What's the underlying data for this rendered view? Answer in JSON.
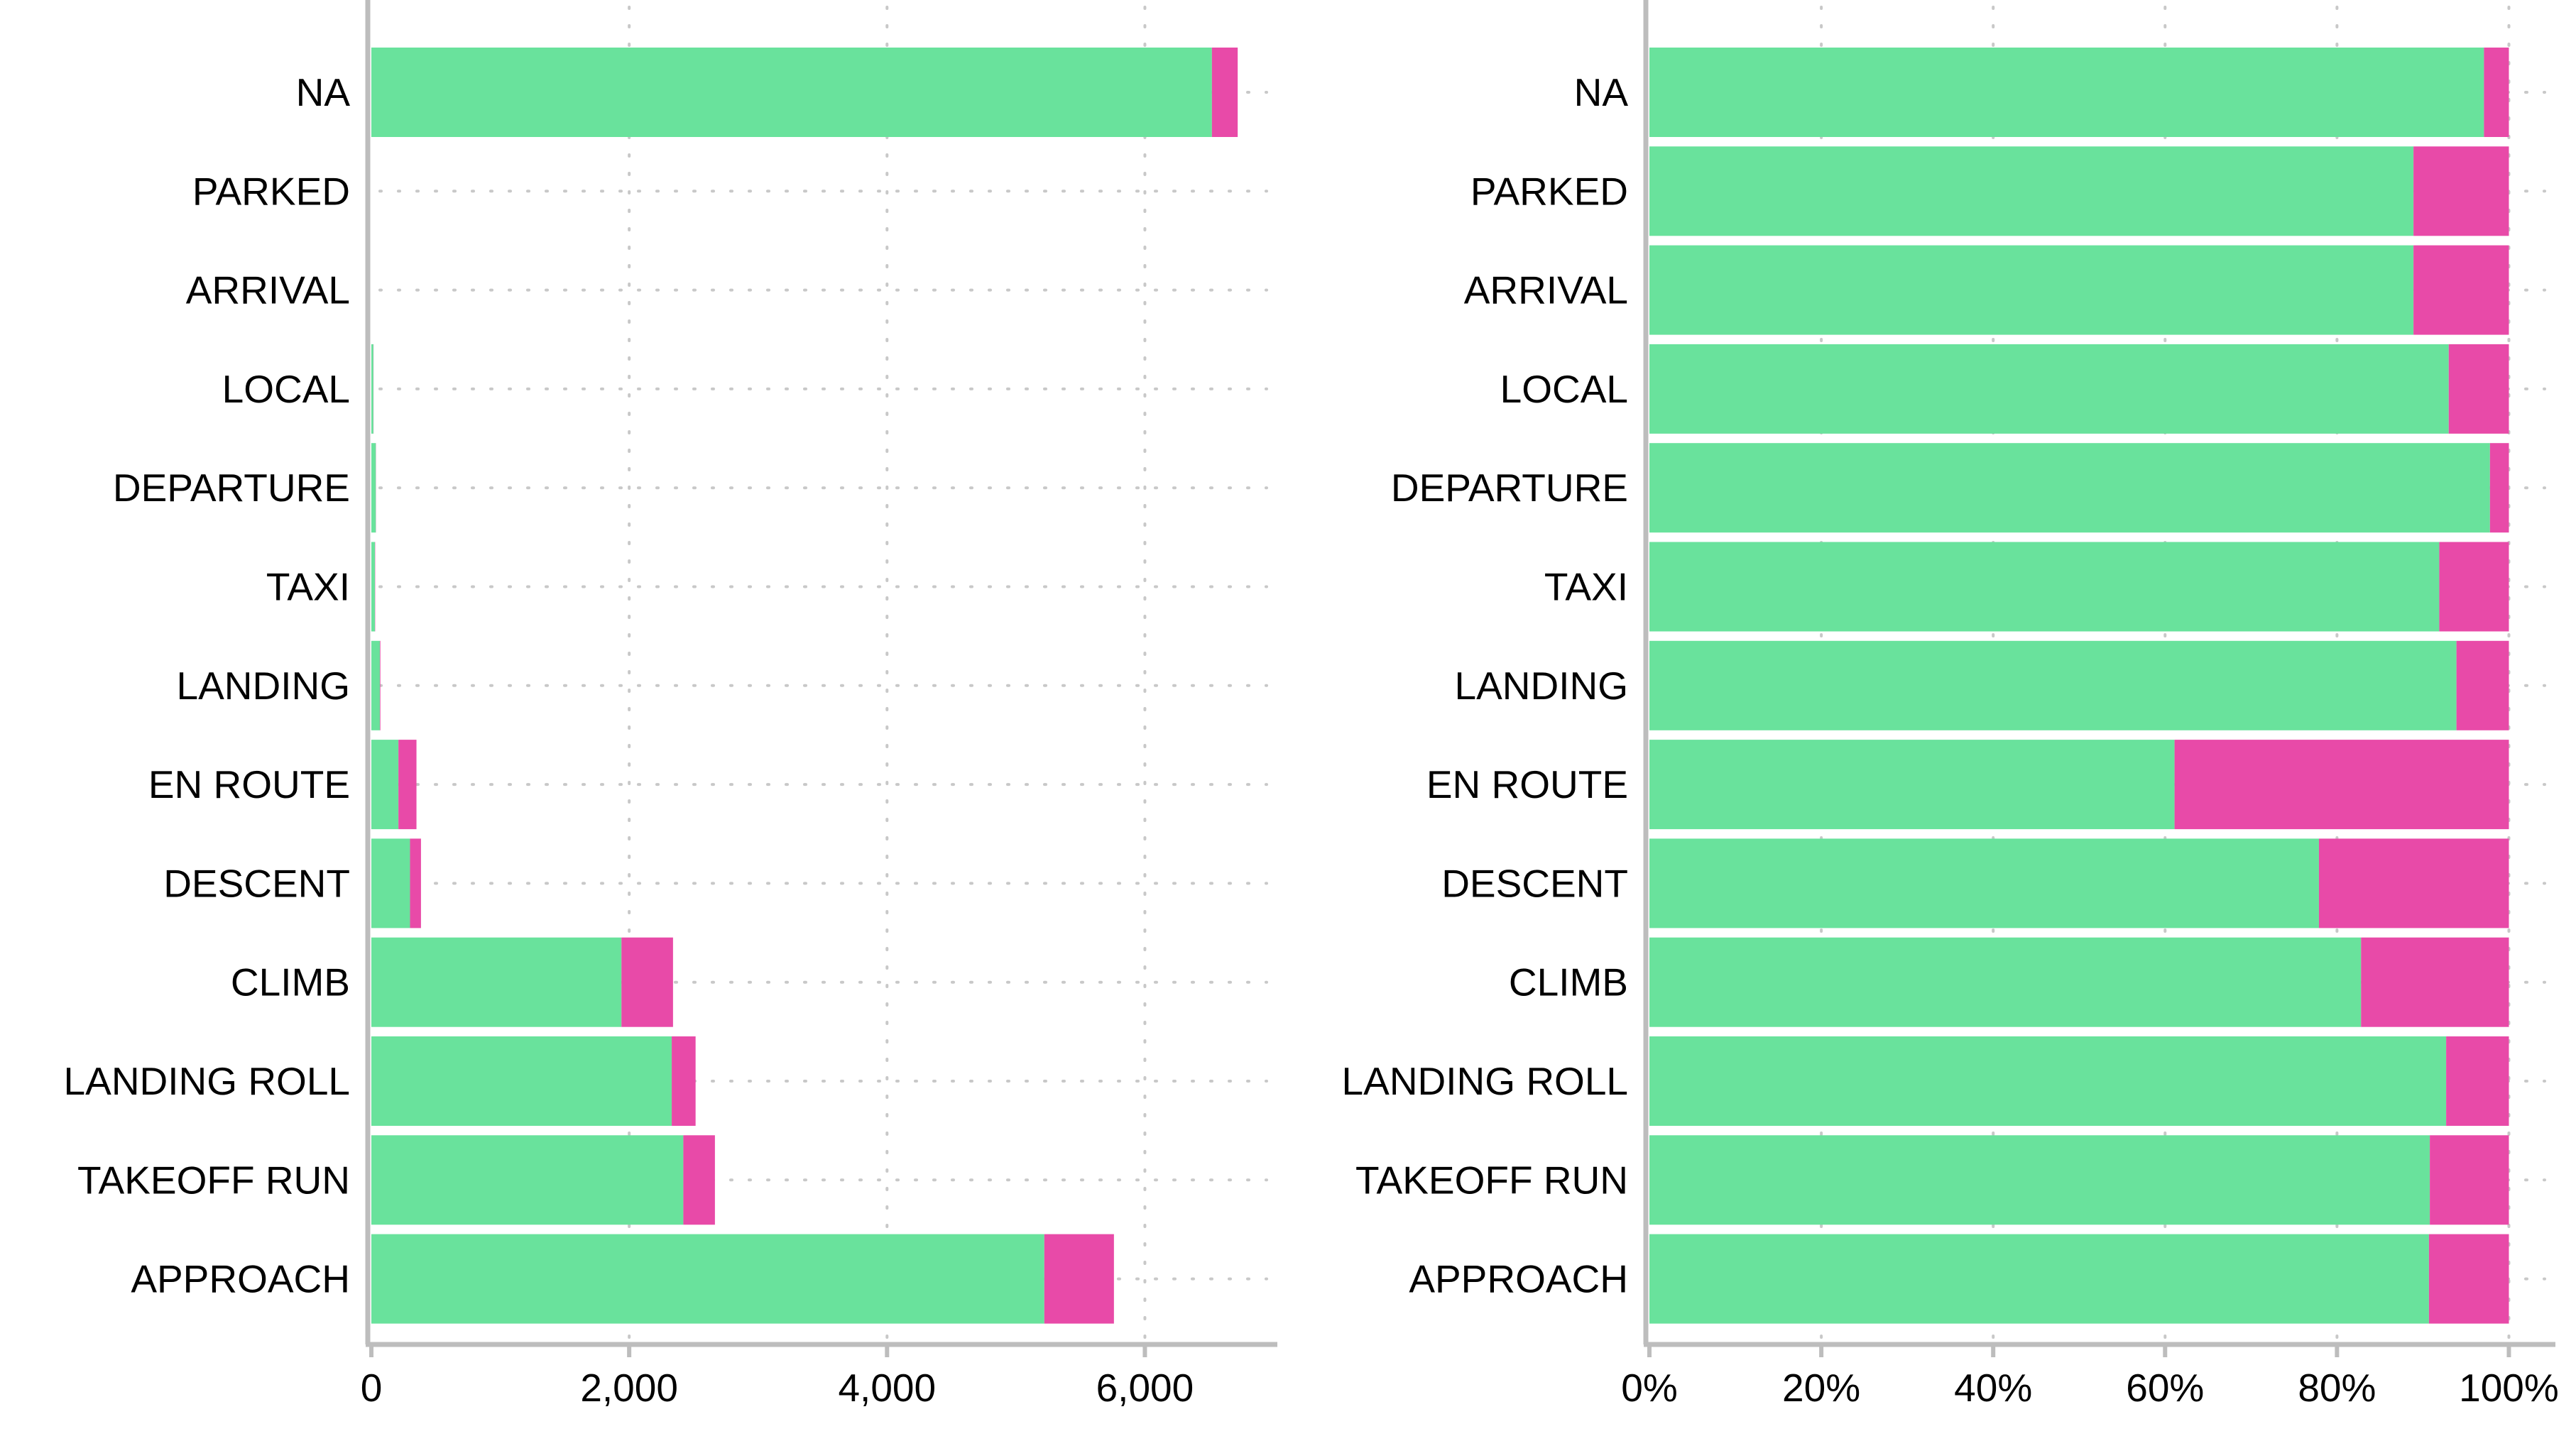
{
  "colors": {
    "green": "#69e29c",
    "pink": "#e84aa8",
    "grid": "#c8c8c8",
    "axis": "#bdbdbd"
  },
  "chart_data": [
    {
      "type": "bar",
      "orientation": "horizontal",
      "stacked": true,
      "categories": [
        "NA",
        "PARKED",
        "ARRIVAL",
        "LOCAL",
        "DEPARTURE",
        "TAXI",
        "LANDING",
        "EN ROUTE",
        "DESCENT",
        "CLIMB",
        "LANDING ROLL",
        "TAKEOFF RUN",
        "APPROACH"
      ],
      "series": [
        {
          "color": "#69e29c",
          "values": [
            6520,
            0,
            0,
            16,
            35,
            28,
            66,
            210,
            300,
            1940,
            2330,
            2420,
            5220
          ]
        },
        {
          "color": "#e84aa8",
          "values": [
            200,
            0,
            0,
            1,
            1,
            2,
            4,
            140,
            85,
            400,
            185,
            245,
            540
          ]
        }
      ],
      "xlim": [
        0,
        7000
      ],
      "xticks": [
        0,
        2000,
        4000,
        6000
      ],
      "xtick_labels": [
        "0",
        "2,000",
        "4,000",
        "6,000"
      ],
      "grid": true
    },
    {
      "type": "bar",
      "orientation": "horizontal",
      "stacked": true,
      "normalized": true,
      "categories": [
        "NA",
        "PARKED",
        "ARRIVAL",
        "LOCAL",
        "DEPARTURE",
        "TAXI",
        "LANDING",
        "EN ROUTE",
        "DESCENT",
        "CLIMB",
        "LANDING ROLL",
        "TAKEOFF RUN",
        "APPROACH"
      ],
      "series": [
        {
          "color": "#69e29c",
          "values": [
            97.1,
            88.9,
            88.9,
            93.0,
            97.8,
            91.9,
            93.9,
            61.1,
            77.9,
            82.8,
            92.7,
            90.8,
            90.7
          ]
        },
        {
          "color": "#e84aa8",
          "values": [
            2.9,
            11.1,
            11.1,
            7.0,
            2.2,
            8.1,
            6.1,
            38.9,
            22.1,
            17.2,
            7.3,
            9.2,
            9.3
          ]
        }
      ],
      "xlim": [
        0,
        105
      ],
      "xticks": [
        0,
        20,
        40,
        60,
        80,
        100
      ],
      "xtick_labels": [
        "0%",
        "20%",
        "40%",
        "60%",
        "80%",
        "100%"
      ],
      "grid": true
    }
  ]
}
